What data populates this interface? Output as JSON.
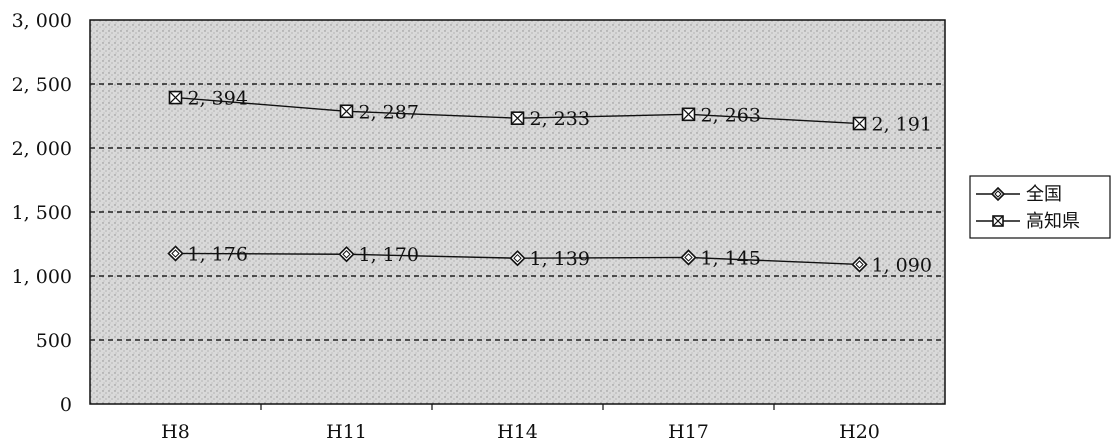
{
  "chart_data": {
    "type": "line",
    "categories": [
      "H8",
      "H11",
      "H14",
      "H17",
      "H20"
    ],
    "series": [
      {
        "name": "全国",
        "values": [
          1176,
          1170,
          1139,
          1145,
          1090
        ],
        "labels": [
          "1, 176",
          "1, 170",
          "1, 139",
          "1, 145",
          "1, 090"
        ],
        "marker": "diamond"
      },
      {
        "name": "高知県",
        "values": [
          2394,
          2287,
          2233,
          2263,
          2191
        ],
        "labels": [
          "2, 394",
          "2, 287",
          "2, 233",
          "2, 263",
          "2, 191"
        ],
        "marker": "square"
      }
    ],
    "yticks": [
      0,
      500,
      1000,
      1500,
      2000,
      2500,
      3000
    ],
    "ytick_labels": [
      "0",
      "500",
      "1, 000",
      "1, 500",
      "2, 000",
      "2, 500",
      "3, 000"
    ],
    "ylim": [
      0,
      3000
    ],
    "grid": "horizontal dashed",
    "legend_position": "right",
    "title": "",
    "xlabel": "",
    "ylabel": ""
  },
  "colors": {
    "plot_background": "#d6d6d6",
    "line": "#111111",
    "grid": "#222222",
    "axis": "#111111"
  }
}
